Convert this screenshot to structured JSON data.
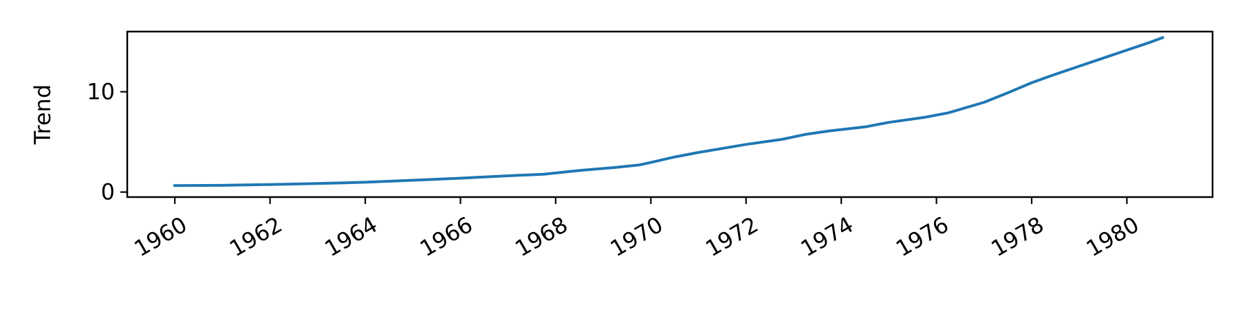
{
  "chart_data": {
    "type": "line",
    "title": "",
    "xlabel": "",
    "ylabel": "Trend",
    "xlim": [
      1959.0,
      1981.8
    ],
    "ylim": [
      -0.5,
      16.0
    ],
    "xticks": [
      1960,
      1962,
      1964,
      1966,
      1968,
      1970,
      1972,
      1974,
      1976,
      1978,
      1980
    ],
    "xtick_labels": [
      "1960",
      "1962",
      "1964",
      "1966",
      "1968",
      "1970",
      "1972",
      "1974",
      "1976",
      "1978",
      "1980"
    ],
    "yticks": [
      0,
      10
    ],
    "ytick_labels": [
      "0",
      "10"
    ],
    "grid": false,
    "legend": "none",
    "series": [
      {
        "color": "#1f77b4",
        "x": [
          1960.0,
          1961.0,
          1962.0,
          1963.0,
          1964.0,
          1965.0,
          1966.0,
          1967.0,
          1967.75,
          1968.5,
          1969.25,
          1969.75,
          1970.0,
          1970.5,
          1971.0,
          1971.5,
          1972.0,
          1972.75,
          1973.25,
          1973.75,
          1974.5,
          1975.0,
          1975.75,
          1976.25,
          1977.0,
          1977.5,
          1978.0,
          1978.5,
          1979.0,
          1979.5,
          1980.0,
          1980.5,
          1980.75
        ],
        "values": [
          0.65,
          0.67,
          0.75,
          0.85,
          0.98,
          1.18,
          1.38,
          1.62,
          1.78,
          2.15,
          2.45,
          2.7,
          2.95,
          3.5,
          3.95,
          4.35,
          4.75,
          5.25,
          5.75,
          6.1,
          6.5,
          6.95,
          7.45,
          7.9,
          8.95,
          9.9,
          10.9,
          11.75,
          12.55,
          13.35,
          14.15,
          14.95,
          15.4
        ]
      }
    ]
  }
}
